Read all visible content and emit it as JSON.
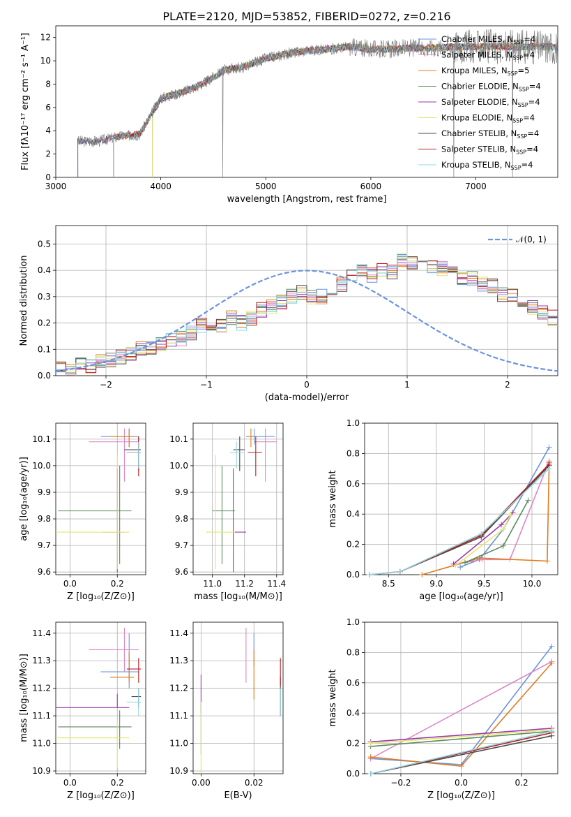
{
  "title": "PLATE=2120, MJD=53852, FIBERID=0272, z=0.216",
  "colors": [
    "#6b93de",
    "#dd87c8",
    "#e07b1c",
    "#5a8a5c",
    "#9b39b2",
    "#e3e86a",
    "#4a4a4a",
    "#b81e1e",
    "#8fd8e3"
  ],
  "legend_spectrum": [
    {
      "label": "Chabrier MILES, N",
      "sub": "SSP",
      "suffix": "=4"
    },
    {
      "label": "Salpeter MILES, N",
      "sub": "SSP",
      "suffix": "=4"
    },
    {
      "label": "Kroupa MILES, N",
      "sub": "SSP",
      "suffix": "=5"
    },
    {
      "label": "Chabrier ELODIE, N",
      "sub": "SSP",
      "suffix": "=4"
    },
    {
      "label": "Salpeter ELODIE, N",
      "sub": "SSP",
      "suffix": "=4"
    },
    {
      "label": "Kroupa ELODIE, N",
      "sub": "SSP",
      "suffix": "=4"
    },
    {
      "label": "Chabrier STELIB, N",
      "sub": "SSP",
      "suffix": "=4"
    },
    {
      "label": "Salpeter STELIB, N",
      "sub": "SSP",
      "suffix": "=4"
    },
    {
      "label": "Kroupa STELIB, N",
      "sub": "SSP",
      "suffix": "=4"
    }
  ],
  "legend_hist": "𝒩(0, 1)",
  "chart_data": [
    {
      "id": "spectrum",
      "type": "line",
      "xlabel": "wavelength [Angstrom, rest frame]",
      "ylabel": "Flux [fλ10⁻¹⁷ erg cm⁻² s⁻¹ A⁻¹]",
      "xlim": [
        3000,
        7780
      ],
      "ylim": [
        0,
        13
      ],
      "xticks": [
        3000,
        4000,
        5000,
        6000,
        7000
      ],
      "yticks": [
        0,
        2,
        4,
        6,
        8,
        10,
        12
      ],
      "continuum_x": [
        3210,
        3400,
        3600,
        3800,
        4000,
        4200,
        4400,
        4600,
        4800,
        5000,
        5200,
        5400,
        5600,
        5800,
        6000,
        6200,
        6400,
        6600,
        6800,
        7000,
        7200,
        7400,
        7780
      ],
      "continuum_y": [
        3.1,
        3.1,
        3.5,
        3.7,
        6.8,
        7.3,
        8.0,
        9.2,
        9.5,
        10.2,
        10.6,
        10.9,
        11.0,
        11.2,
        11.0,
        11.0,
        11.1,
        11.1,
        11.2,
        11.2,
        11.2,
        11.2,
        11.2
      ],
      "model_starts": [
        3210,
        3210,
        3550,
        3550,
        3920,
        3920,
        3210,
        3550,
        3550
      ]
    },
    {
      "id": "residual_histogram",
      "type": "bar",
      "xlabel": "(data-model)/error",
      "ylabel": "Normed distribution",
      "xlim": [
        -2.5,
        2.5
      ],
      "ylim": [
        0,
        0.57
      ],
      "xticks": [
        -2,
        -1,
        0,
        1,
        2
      ],
      "yticks": [
        0.0,
        0.1,
        0.2,
        0.3,
        0.4,
        0.5
      ],
      "bin_width": 0.1,
      "bins_start": -2.5,
      "values": [
        0.03,
        0.02,
        0.04,
        0.04,
        0.05,
        0.06,
        0.07,
        0.08,
        0.1,
        0.11,
        0.12,
        0.14,
        0.14,
        0.16,
        0.19,
        0.17,
        0.19,
        0.22,
        0.2,
        0.22,
        0.25,
        0.26,
        0.28,
        0.3,
        0.32,
        0.3,
        0.3,
        0.33,
        0.35,
        0.38,
        0.4,
        0.38,
        0.4,
        0.39,
        0.44,
        0.43,
        0.43,
        0.42,
        0.41,
        0.39,
        0.37,
        0.37,
        0.35,
        0.34,
        0.31,
        0.3,
        0.28,
        0.26,
        0.24,
        0.22
      ],
      "gaussian": {
        "mean": 0,
        "sigma": 1
      }
    },
    {
      "id": "age_vs_Z",
      "type": "scatter",
      "xlabel": "Z [log₁₀(Z/Z⊙)]",
      "ylabel": "age  [log₁₀(age/yr)]",
      "xlim": [
        -0.06,
        0.32
      ],
      "ylim": [
        9.59,
        10.16
      ],
      "xticks": [
        0.0,
        0.2
      ],
      "yticks": [
        9.6,
        9.7,
        9.8,
        9.9,
        10.0,
        10.1
      ],
      "points": [
        {
          "x": 0.25,
          "y": 10.11,
          "xerr": [
            0.12,
            0.04
          ],
          "yerr": [
            0.04,
            0.03
          ]
        },
        {
          "x": 0.23,
          "y": 10.09,
          "xerr": [
            0.15,
            0.06
          ],
          "yerr": [
            0.15,
            0.05
          ]
        },
        {
          "x": 0.25,
          "y": 10.11,
          "xerr": [
            0.08,
            0.02
          ],
          "yerr": [
            0.04,
            0.03
          ]
        },
        {
          "x": 0.21,
          "y": 9.83,
          "xerr": [
            0.26,
            0.05
          ],
          "yerr": [
            0.2,
            0.17
          ]
        },
        {
          "x": 0.2,
          "y": 9.75,
          "xerr": [
            0.06,
            0.03
          ],
          "yerr": [
            0.15,
            0.24
          ]
        },
        {
          "x": 0.2,
          "y": 9.75,
          "xerr": [
            0.26,
            0.05
          ],
          "yerr": [
            0.14,
            0.29
          ]
        },
        {
          "x": 0.29,
          "y": 10.06,
          "xerr": [
            0.06,
            0.01
          ],
          "yerr": [
            0.08,
            0.05
          ]
        },
        {
          "x": 0.29,
          "y": 10.05,
          "xerr": [
            0.05,
            0.01
          ],
          "yerr": [
            0.09,
            0.06
          ]
        },
        {
          "x": 0.29,
          "y": 10.05,
          "xerr": [
            0.05,
            0.01
          ],
          "yerr": [
            0.06,
            0.04
          ]
        }
      ]
    },
    {
      "id": "age_vs_mass",
      "type": "scatter",
      "xlabel": "mass [log₁₀(M/M⊙)]",
      "ylabel": "",
      "xlim": [
        10.88,
        11.44
      ],
      "ylim": [
        9.59,
        10.16
      ],
      "xticks": [
        11.0,
        11.2,
        11.4
      ],
      "yticks": [
        9.6,
        9.7,
        9.8,
        9.9,
        10.0,
        10.1
      ],
      "points": [
        {
          "x": 11.26,
          "y": 10.11,
          "xerr": [
            0.05,
            0.13
          ],
          "yerr": [
            0.03,
            0.03
          ]
        },
        {
          "x": 11.33,
          "y": 10.09,
          "xerr": [
            0.07,
            0.07
          ],
          "yerr": [
            0.15,
            0.05
          ]
        },
        {
          "x": 11.24,
          "y": 10.11,
          "xerr": [
            0.02,
            0.02
          ],
          "yerr": [
            0.04,
            0.03
          ]
        },
        {
          "x": 11.06,
          "y": 9.83,
          "xerr": [
            0.06,
            0.08
          ],
          "yerr": [
            0.2,
            0.17
          ]
        },
        {
          "x": 11.13,
          "y": 9.75,
          "xerr": [
            0.0,
            0.08
          ],
          "yerr": [
            0.15,
            0.24
          ]
        },
        {
          "x": 11.02,
          "y": 9.75,
          "xerr": [
            0.06,
            0.12
          ],
          "yerr": [
            0.14,
            0.29
          ]
        },
        {
          "x": 11.17,
          "y": 10.06,
          "xerr": [
            0.04,
            0.03
          ],
          "yerr": [
            0.08,
            0.05
          ]
        },
        {
          "x": 11.27,
          "y": 10.05,
          "xerr": [
            0.05,
            0.04
          ],
          "yerr": [
            0.09,
            0.06
          ]
        },
        {
          "x": 11.15,
          "y": 10.05,
          "xerr": [
            0.04,
            0.05
          ],
          "yerr": [
            0.06,
            0.04
          ]
        }
      ]
    },
    {
      "id": "weight_vs_age",
      "type": "line",
      "xlabel": "age  [log₁₀(age/yr)]",
      "ylabel": "mass weight",
      "xlim": [
        8.25,
        10.27
      ],
      "ylim": [
        0,
        1.0
      ],
      "xticks": [
        8.5,
        9.0,
        9.5,
        10.0
      ],
      "yticks": [
        0.0,
        0.2,
        0.4,
        0.6,
        0.8,
        1.0
      ],
      "series": [
        {
          "x": [
            9.25,
            9.45,
            9.7,
            10.18
          ],
          "y": [
            0.05,
            0.1,
            0.3,
            0.84
          ]
        },
        {
          "x": [
            9.2,
            9.48,
            9.77,
            10.18
          ],
          "y": [
            0.07,
            0.1,
            0.1,
            0.75
          ]
        },
        {
          "x": [
            8.85,
            9.45,
            10.16,
            10.18
          ],
          "y": [
            0.0,
            0.11,
            0.09,
            0.74
          ]
        },
        {
          "x": [
            9.3,
            9.7,
            9.96
          ],
          "y": [
            0.08,
            0.19,
            0.49
          ]
        },
        {
          "x": [
            9.18,
            9.68,
            9.8
          ],
          "y": [
            0.07,
            0.33,
            0.41
          ]
        },
        {
          "x": [
            9.2,
            9.7,
            9.78
          ],
          "y": [
            0.06,
            0.3,
            0.4
          ]
        },
        {
          "x": [
            8.3,
            8.62,
            9.47,
            10.18
          ],
          "y": [
            0.0,
            0.02,
            0.25,
            0.72
          ]
        },
        {
          "x": [
            8.3,
            8.62,
            9.47,
            10.18
          ],
          "y": [
            0.0,
            0.02,
            0.26,
            0.73
          ]
        },
        {
          "x": [
            8.3,
            8.62,
            9.47,
            10.18
          ],
          "y": [
            0.0,
            0.02,
            0.27,
            0.7
          ]
        }
      ]
    },
    {
      "id": "mass_vs_Z",
      "type": "scatter",
      "xlabel": "Z [log₁₀(Z/Z⊙)]",
      "ylabel": "mass [log₁₀(M/M⊙)]",
      "xlim": [
        -0.06,
        0.32
      ],
      "ylim": [
        10.89,
        11.44
      ],
      "xticks": [
        0.0,
        0.2
      ],
      "yticks": [
        10.9,
        11.0,
        11.1,
        11.2,
        11.3,
        11.4
      ],
      "points": [
        {
          "x": 0.25,
          "y": 11.26,
          "xerr": [
            0.12,
            0.04
          ],
          "yerr": [
            0.06,
            0.14
          ]
        },
        {
          "x": 0.23,
          "y": 11.34,
          "xerr": [
            0.15,
            0.06
          ],
          "yerr": [
            0.08,
            0.08
          ]
        },
        {
          "x": 0.25,
          "y": 11.24,
          "xerr": [
            0.08,
            0.02
          ],
          "yerr": [
            0.02,
            0.09
          ]
        },
        {
          "x": 0.21,
          "y": 11.06,
          "xerr": [
            0.26,
            0.05
          ],
          "yerr": [
            0.08,
            0.06
          ]
        },
        {
          "x": 0.2,
          "y": 11.13,
          "xerr": [
            0.26,
            0.05
          ],
          "yerr": [
            0.0,
            0.05
          ]
        },
        {
          "x": 0.2,
          "y": 11.02,
          "xerr": [
            0.26,
            0.05
          ],
          "yerr": [
            0.11,
            0.06
          ]
        },
        {
          "x": 0.29,
          "y": 11.17,
          "xerr": [
            0.03,
            0.01
          ],
          "yerr": [
            0.04,
            0.03
          ]
        },
        {
          "x": 0.29,
          "y": 11.27,
          "xerr": [
            0.05,
            0.01
          ],
          "yerr": [
            0.05,
            0.04
          ]
        },
        {
          "x": 0.29,
          "y": 11.15,
          "xerr": [
            0.05,
            0.01
          ],
          "yerr": [
            0.05,
            0.05
          ]
        }
      ]
    },
    {
      "id": "mass_vs_EBV",
      "type": "scatter",
      "xlabel": "E(B-V)",
      "ylabel": "",
      "xlim": [
        -0.003,
        0.031
      ],
      "ylim": [
        10.89,
        11.44
      ],
      "xticks": [
        0.0,
        0.02
      ],
      "yticks": [
        10.9,
        11.0,
        11.1,
        11.2,
        11.3,
        11.4
      ],
      "points": [
        {
          "x": 0.02,
          "y": 11.33,
          "xerr": [
            0,
            0
          ],
          "yerr": [
            0.05,
            0.07
          ]
        },
        {
          "x": 0.017,
          "y": 11.32,
          "xerr": [
            0,
            0
          ],
          "yerr": [
            0.1,
            0.1
          ]
        },
        {
          "x": 0.02,
          "y": 11.25,
          "xerr": [
            0,
            0
          ],
          "yerr": [
            0.09,
            0.09
          ]
        },
        {
          "x": 0.0,
          "y": 11.05,
          "xerr": [
            0,
            0
          ],
          "yerr": [
            0.09,
            0.09
          ]
        },
        {
          "x": 0.0,
          "y": 11.18,
          "xerr": [
            0,
            0
          ],
          "yerr": [
            0.07,
            0.07
          ]
        },
        {
          "x": 0.0,
          "y": 10.95,
          "xerr": [
            0,
            0
          ],
          "yerr": [
            0.06,
            0.2
          ]
        },
        {
          "x": 0.03,
          "y": 11.17,
          "xerr": [
            0,
            0
          ],
          "yerr": [
            0.07,
            0.07
          ]
        },
        {
          "x": 0.03,
          "y": 11.26,
          "xerr": [
            0,
            0
          ],
          "yerr": [
            0.05,
            0.05
          ]
        },
        {
          "x": 0.03,
          "y": 11.15,
          "xerr": [
            0,
            0
          ],
          "yerr": [
            0.05,
            0.05
          ]
        }
      ]
    },
    {
      "id": "weight_vs_Z",
      "type": "line",
      "xlabel": "Z [log₁₀(Z/Z⊙)]",
      "ylabel": "mass weight",
      "xlim": [
        -0.32,
        0.32
      ],
      "ylim": [
        0,
        1.0
      ],
      "xticks": [
        -0.2,
        0.0,
        0.2
      ],
      "yticks": [
        0.0,
        0.2,
        0.4,
        0.6,
        0.8,
        1.0
      ],
      "series": [
        {
          "x": [
            -0.3,
            0.0,
            0.3
          ],
          "y": [
            0.1,
            0.06,
            0.84
          ]
        },
        {
          "x": [
            -0.3,
            0.3
          ],
          "y": [
            0.1,
            0.74
          ]
        },
        {
          "x": [
            -0.3,
            0.0,
            0.3
          ],
          "y": [
            0.11,
            0.05,
            0.73
          ]
        },
        {
          "x": [
            -0.3,
            0.3
          ],
          "y": [
            0.18,
            0.28
          ]
        },
        {
          "x": [
            -0.3,
            0.3
          ],
          "y": [
            0.21,
            0.3
          ]
        },
        {
          "x": [
            -0.3,
            0.3
          ],
          "y": [
            0.2,
            0.29
          ]
        },
        {
          "x": [
            -0.3,
            0.3
          ],
          "y": [
            0.0,
            0.25
          ]
        },
        {
          "x": [
            -0.3,
            0.3
          ],
          "y": [
            0.0,
            0.27
          ]
        },
        {
          "x": [
            -0.3,
            0.3
          ],
          "y": [
            0.0,
            0.28
          ]
        }
      ]
    }
  ]
}
